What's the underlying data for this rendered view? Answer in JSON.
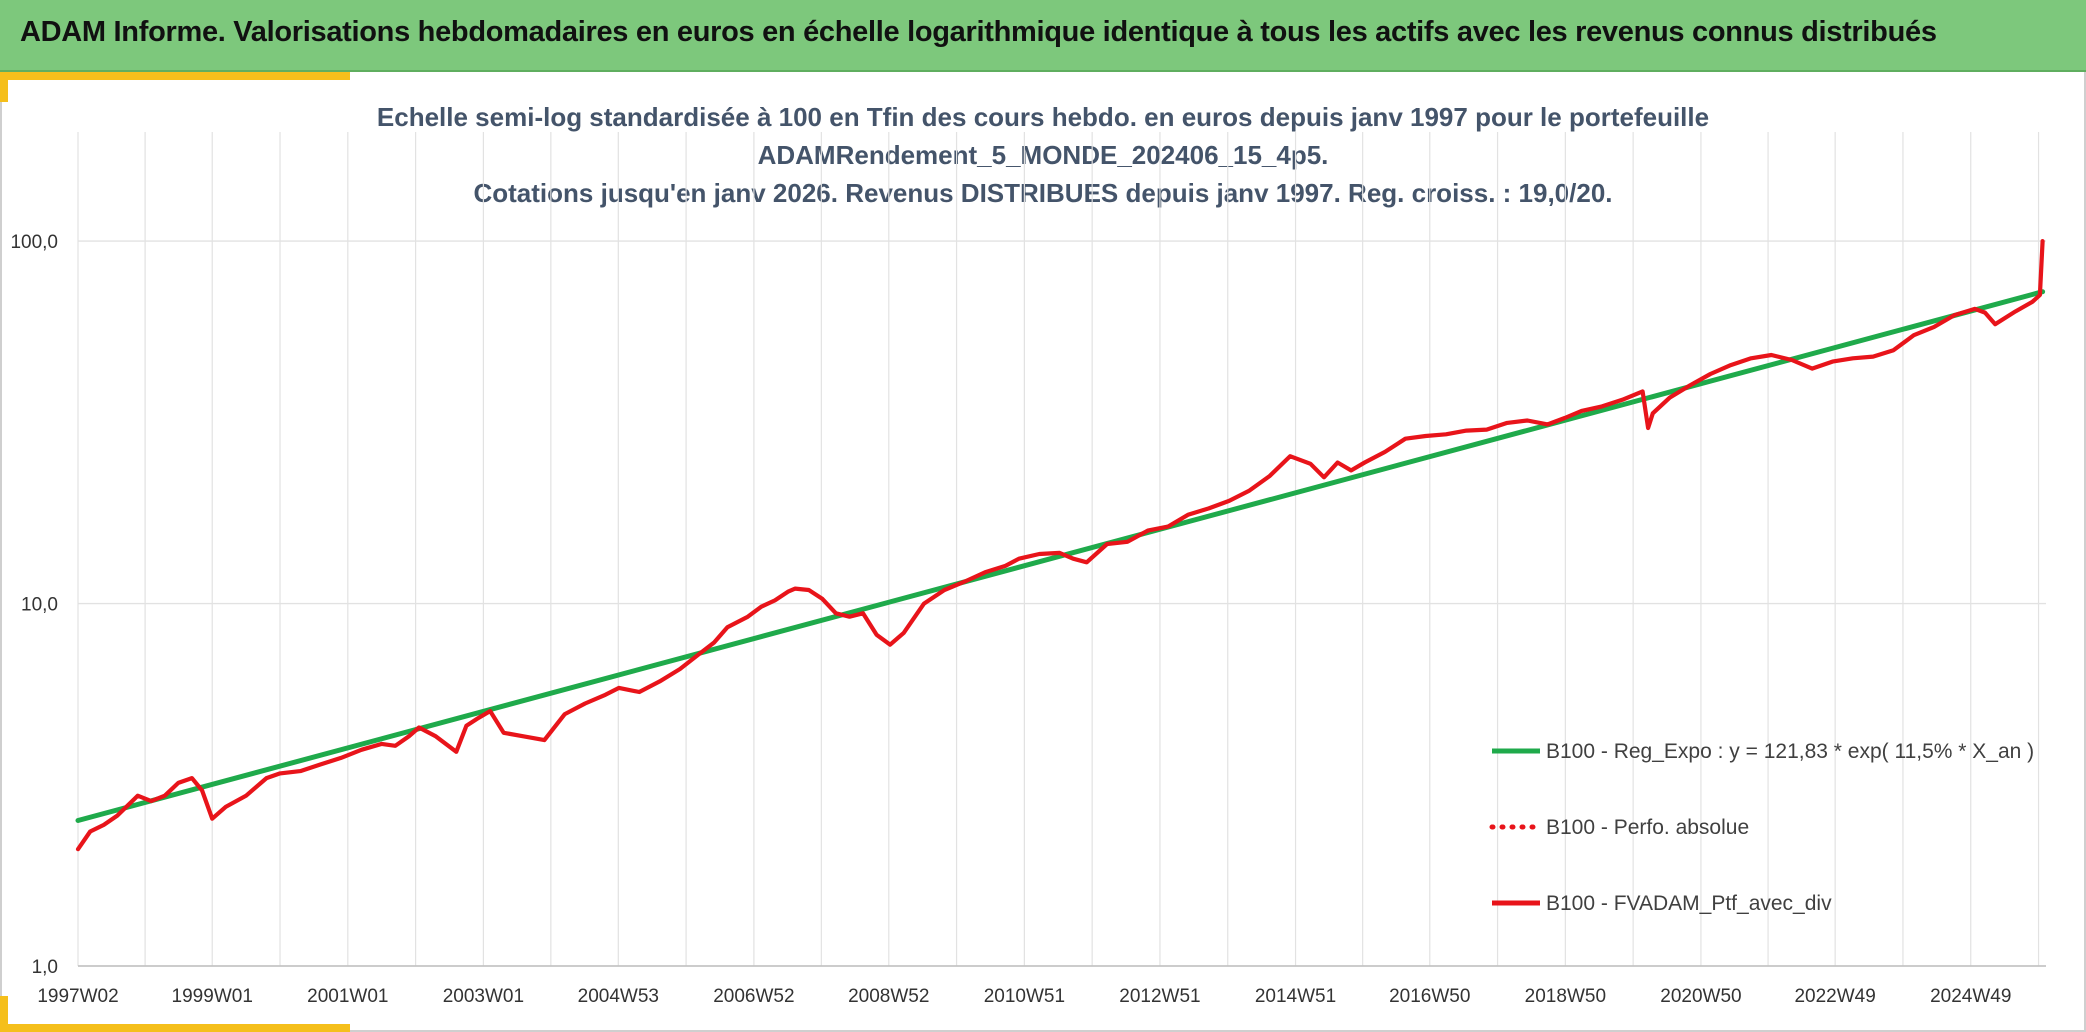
{
  "banner": {
    "title": "ADAM Informe. Valorisations hebdomadaires en euros en échelle logarithmique identique à tous les actifs avec les revenus connus distribués"
  },
  "colors": {
    "banner_green": "#7dc87c",
    "accent_yellow": "#f5bf1b",
    "regression_green": "#1faa4b",
    "portfolio_red": "#e8141a",
    "title_slate": "#44546a",
    "grid": "#e2e2e2"
  },
  "chart_data": {
    "type": "line",
    "title_lines": [
      "Echelle semi-log standardisée à 100 en Tfin des cours hebdo. en euros depuis janv 1997 pour le portefeuille",
      "ADAMRendement_5_MONDE_202406_15_4p5.",
      "Cotations jusqu'en janv 2026. Revenus DISTRIBUES depuis janv 1997. Reg. croiss. : 19,0/20."
    ],
    "xlabel": "",
    "ylabel": "",
    "y_scale": "log",
    "ylim": [
      1,
      200
    ],
    "xlim": [
      1997.02,
      2026.05
    ],
    "y_ticks": [
      1,
      10,
      100
    ],
    "y_tick_labels": [
      "1,0",
      "10,0",
      "100,0"
    ],
    "x_ticks": [
      1997.02,
      1999.0,
      2001.0,
      2003.0,
      2004.99,
      2006.99,
      2008.98,
      2010.98,
      2012.98,
      2014.98,
      2016.96,
      2018.96,
      2020.96,
      2022.94,
      2024.94
    ],
    "x_tick_labels": [
      "1997W02",
      "1999W01",
      "2001W01",
      "2003W01",
      "2004W53",
      "2006W52",
      "2008W52",
      "2010W51",
      "2012W51",
      "2014W51",
      "2016W50",
      "2018W50",
      "2020W50",
      "2022W49",
      "2024W49"
    ],
    "grid": true,
    "legend_position": "bottom-right",
    "series": [
      {
        "name": "B100 - Reg_Expo : y = 121,83 * exp( 11,5% *  X_an )",
        "style": "solid",
        "color": "#1faa4b",
        "x": [
          1997.02,
          2026.0
        ],
        "y": [
          2.52,
          72.5
        ]
      },
      {
        "name": "B100 - Perfo. absolue",
        "style": "dotted",
        "color": "#e8141a",
        "x": [],
        "y": []
      },
      {
        "name": "B100 - FVADAM_Ptf_avec_div",
        "style": "solid",
        "color": "#e8141a",
        "x": [
          1997.02,
          1997.2,
          1997.4,
          1997.6,
          1997.9,
          1998.1,
          1998.3,
          1998.5,
          1998.7,
          1998.85,
          1999.0,
          1999.2,
          1999.5,
          1999.8,
          2000.0,
          2000.3,
          2000.6,
          2000.9,
          2001.2,
          2001.5,
          2001.7,
          2001.9,
          2002.05,
          2002.3,
          2002.6,
          2002.75,
          2002.9,
          2003.1,
          2003.3,
          2003.6,
          2003.9,
          2004.2,
          2004.5,
          2004.8,
          2005.0,
          2005.3,
          2005.6,
          2005.9,
          2006.2,
          2006.4,
          2006.6,
          2006.9,
          2007.1,
          2007.3,
          2007.5,
          2007.6,
          2007.8,
          2008.0,
          2008.2,
          2008.4,
          2008.6,
          2008.8,
          2009.0,
          2009.2,
          2009.5,
          2009.8,
          2010.1,
          2010.4,
          2010.7,
          2010.9,
          2011.2,
          2011.5,
          2011.7,
          2011.9,
          2012.2,
          2012.5,
          2012.8,
          2013.1,
          2013.4,
          2013.7,
          2014.0,
          2014.3,
          2014.6,
          2014.9,
          2015.2,
          2015.4,
          2015.6,
          2015.8,
          2016.0,
          2016.3,
          2016.6,
          2016.9,
          2017.2,
          2017.5,
          2017.8,
          2018.1,
          2018.4,
          2018.7,
          2018.95,
          2019.2,
          2019.5,
          2019.8,
          2020.1,
          2020.18,
          2020.25,
          2020.5,
          2020.8,
          2021.1,
          2021.4,
          2021.7,
          2022.0,
          2022.3,
          2022.6,
          2022.9,
          2023.2,
          2023.5,
          2023.8,
          2024.1,
          2024.4,
          2024.7,
          2025.0,
          2025.15,
          2025.3,
          2025.6,
          2025.85,
          2025.96,
          2026.0
        ],
        "y": [
          2.1,
          2.35,
          2.45,
          2.6,
          2.95,
          2.85,
          2.95,
          3.2,
          3.3,
          3.05,
          2.55,
          2.75,
          2.95,
          3.3,
          3.4,
          3.45,
          3.6,
          3.75,
          3.95,
          4.1,
          4.05,
          4.3,
          4.55,
          4.3,
          3.9,
          4.6,
          4.8,
          5.05,
          4.4,
          4.3,
          4.2,
          4.95,
          5.3,
          5.6,
          5.85,
          5.7,
          6.1,
          6.6,
          7.3,
          7.8,
          8.6,
          9.2,
          9.8,
          10.2,
          10.8,
          11.0,
          10.9,
          10.3,
          9.4,
          9.2,
          9.4,
          8.2,
          7.7,
          8.3,
          10.0,
          10.9,
          11.5,
          12.2,
          12.7,
          13.3,
          13.7,
          13.8,
          13.3,
          13.0,
          14.6,
          14.8,
          15.9,
          16.3,
          17.6,
          18.3,
          19.2,
          20.5,
          22.5,
          25.5,
          24.3,
          22.3,
          24.5,
          23.3,
          24.5,
          26.2,
          28.5,
          29.0,
          29.3,
          30.0,
          30.2,
          31.5,
          32.0,
          31.2,
          32.5,
          34.0,
          35.0,
          36.5,
          38.5,
          30.5,
          33.5,
          37.0,
          40.0,
          43.0,
          45.5,
          47.5,
          48.5,
          47.0,
          44.5,
          46.5,
          47.5,
          48.0,
          50.0,
          55.0,
          58.0,
          62.5,
          65.0,
          63.5,
          59.0,
          64.0,
          68.0,
          71.0,
          100.0
        ]
      }
    ]
  }
}
